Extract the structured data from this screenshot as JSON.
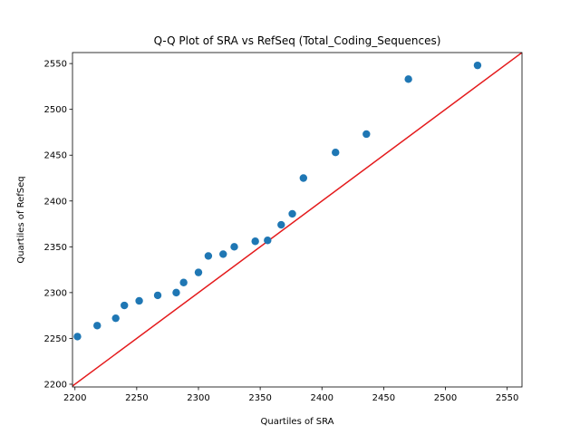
{
  "chart_data": {
    "type": "scatter",
    "title": "Q-Q Plot of SRA vs RefSeq (Total_Coding_Sequences)",
    "xlabel": "Quartiles of SRA",
    "ylabel": "Quartiles of RefSeq",
    "xlim": [
      2198,
      2562
    ],
    "ylim": [
      2197,
      2562
    ],
    "xticks": [
      2200,
      2250,
      2300,
      2350,
      2400,
      2450,
      2500,
      2550
    ],
    "yticks": [
      2200,
      2250,
      2300,
      2350,
      2400,
      2450,
      2500,
      2550
    ],
    "grid": false,
    "points": [
      {
        "x": 2202,
        "y": 2252
      },
      {
        "x": 2218,
        "y": 2264
      },
      {
        "x": 2233,
        "y": 2272
      },
      {
        "x": 2240,
        "y": 2286
      },
      {
        "x": 2252,
        "y": 2291
      },
      {
        "x": 2267,
        "y": 2297
      },
      {
        "x": 2282,
        "y": 2300
      },
      {
        "x": 2288,
        "y": 2311
      },
      {
        "x": 2300,
        "y": 2322
      },
      {
        "x": 2308,
        "y": 2340
      },
      {
        "x": 2320,
        "y": 2342
      },
      {
        "x": 2329,
        "y": 2350
      },
      {
        "x": 2346,
        "y": 2356
      },
      {
        "x": 2356,
        "y": 2357
      },
      {
        "x": 2367,
        "y": 2374
      },
      {
        "x": 2376,
        "y": 2386
      },
      {
        "x": 2385,
        "y": 2425
      },
      {
        "x": 2411,
        "y": 2453
      },
      {
        "x": 2436,
        "y": 2473
      },
      {
        "x": 2470,
        "y": 2533
      },
      {
        "x": 2526,
        "y": 2548
      }
    ],
    "reference_line": {
      "kind": "y=x",
      "color": "#e41a1c"
    },
    "marker_color": "#1f77b4"
  }
}
